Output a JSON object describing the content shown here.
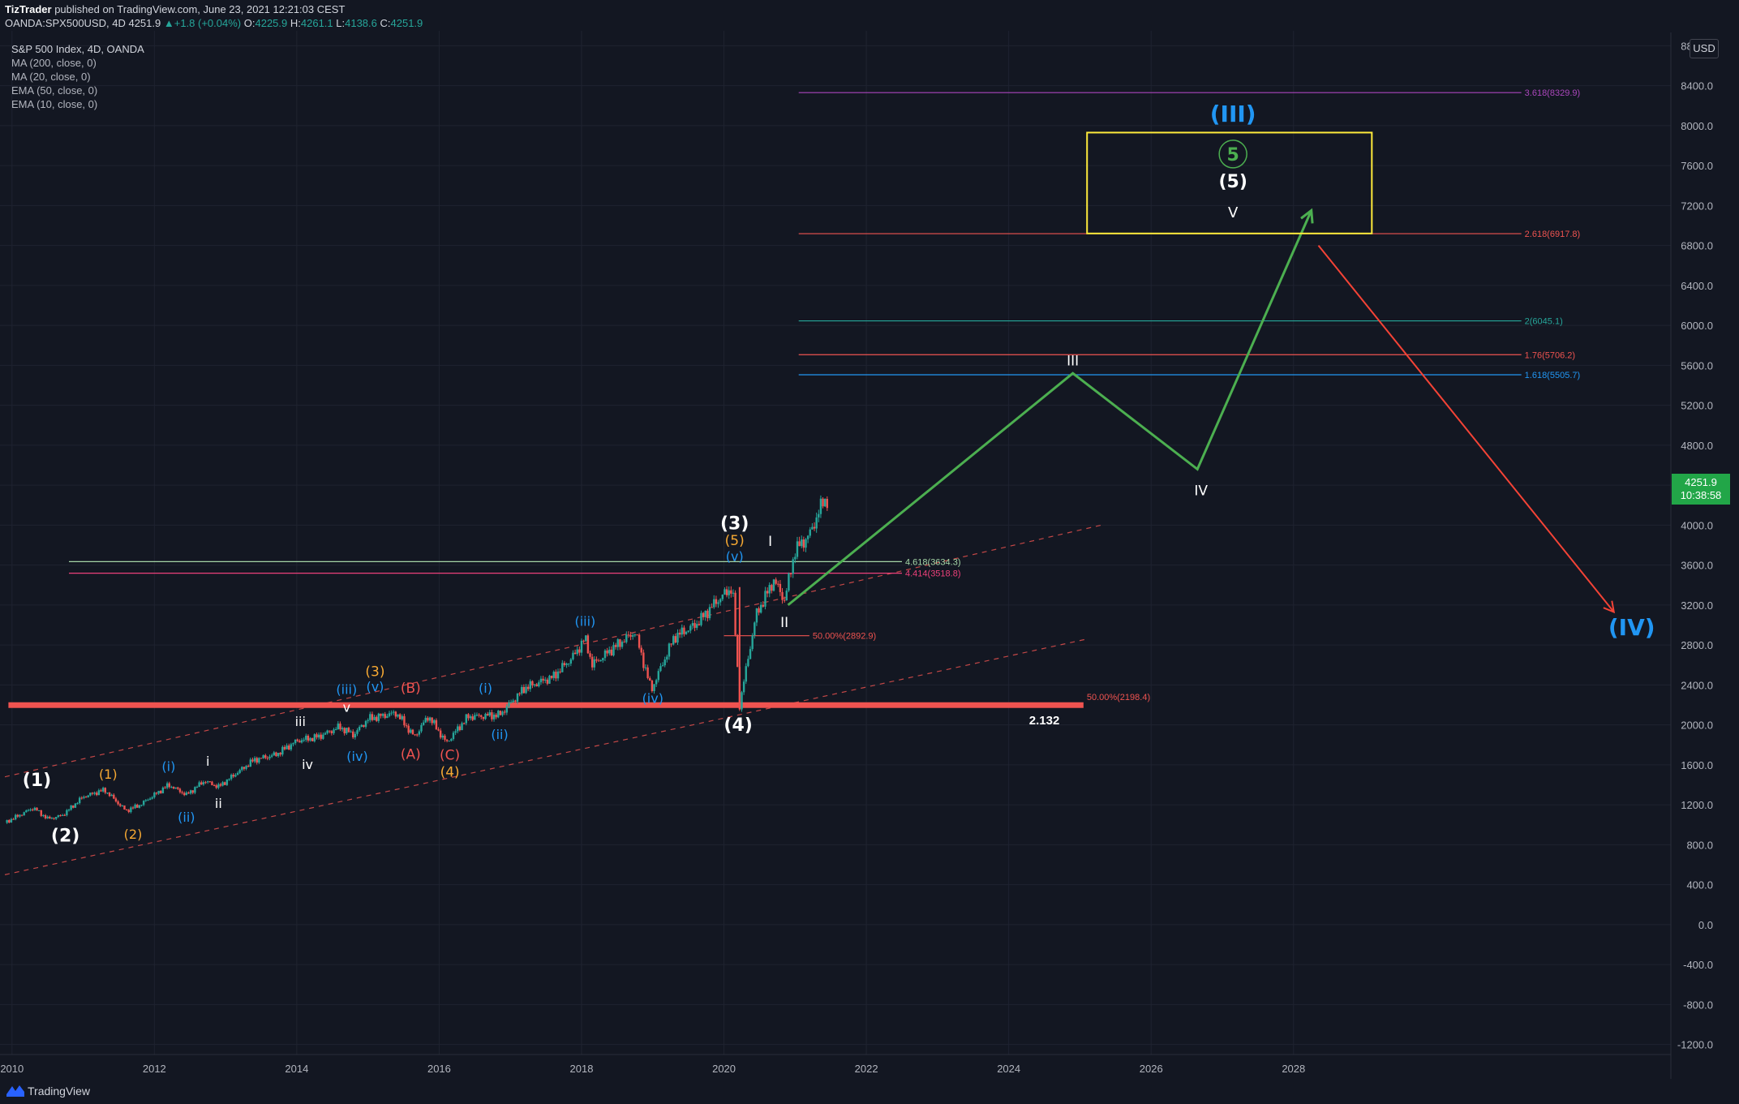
{
  "header": {
    "author": "TizTrader",
    "published": "published on TradingView.com, June 23, 2021 12:21:03 CEST",
    "symbol": "OANDA:SPX500USD, 4D",
    "last": "4251.9",
    "change_arrow": "▲",
    "change": "+1.8 (+0.04%)",
    "open_label": "O:",
    "open": "4225.9",
    "high_label": "H:",
    "high": "4261.1",
    "low_label": "L:",
    "low": "4138.6",
    "close_label": "C:",
    "close": "4251.9"
  },
  "legend": {
    "title": "S&P 500 Index, 4D, OANDA",
    "studies": [
      "MA (200, close, 0)",
      "MA (20, close, 0)",
      "EMA (50, close, 0)",
      "EMA (10, close, 0)"
    ]
  },
  "price_axis": {
    "currency": "USD",
    "current_price": "4251.9",
    "countdown": "10:38:58"
  },
  "footer": {
    "brand": "TradingView"
  },
  "colors": {
    "background": "#131722",
    "grid": "#1f2330",
    "candle_up": "#26a69a",
    "candle_down": "#ef5350",
    "projection": "#4caf50",
    "target_down": "#f44336",
    "target_box": "#ffeb3b",
    "wave_white": "#ffffff",
    "wave_orange": "#f7a933",
    "wave_blue": "#2196f3",
    "wave_red": "#ef5350",
    "wave_green": "#4caf50"
  },
  "chart_data": {
    "type": "line",
    "x_unit": "year",
    "xlim": [
      2009.9,
      2033.3
    ],
    "ylim": [
      -1300,
      8900
    ],
    "x_ticks": [
      2010,
      2012,
      2014,
      2016,
      2018,
      2020,
      2022,
      2024,
      2026,
      2028
    ],
    "y_ticks": [
      8800,
      8400,
      8000,
      7600,
      7200,
      6800,
      6400,
      6000,
      5600,
      5200,
      4800,
      4400,
      4000,
      3600,
      3200,
      2800,
      2400,
      2000,
      1600,
      1200,
      800,
      400,
      0,
      -400,
      -800,
      -1200
    ],
    "price_series": [
      [
        2009.9,
        1020
      ],
      [
        2010.3,
        1170
      ],
      [
        2010.5,
        1060
      ],
      [
        2010.7,
        1090
      ],
      [
        2011.0,
        1280
      ],
      [
        2011.3,
        1350
      ],
      [
        2011.6,
        1140
      ],
      [
        2011.8,
        1200
      ],
      [
        2012.2,
        1400
      ],
      [
        2012.45,
        1300
      ],
      [
        2012.7,
        1440
      ],
      [
        2012.9,
        1380
      ],
      [
        2013.4,
        1650
      ],
      [
        2013.7,
        1700
      ],
      [
        2014.0,
        1840
      ],
      [
        2014.3,
        1880
      ],
      [
        2014.6,
        1980
      ],
      [
        2014.8,
        1900
      ],
      [
        2015.0,
        2060
      ],
      [
        2015.4,
        2120
      ],
      [
        2015.65,
        1880
      ],
      [
        2015.85,
        2090
      ],
      [
        2016.1,
        1820
      ],
      [
        2016.4,
        2080
      ],
      [
        2016.85,
        2100
      ],
      [
        2017.2,
        2370
      ],
      [
        2017.6,
        2480
      ],
      [
        2017.9,
        2700
      ],
      [
        2018.05,
        2870
      ],
      [
        2018.15,
        2600
      ],
      [
        2018.5,
        2800
      ],
      [
        2018.75,
        2930
      ],
      [
        2018.98,
        2350
      ],
      [
        2019.3,
        2880
      ],
      [
        2019.6,
        3000
      ],
      [
        2019.9,
        3240
      ],
      [
        2020.12,
        3380
      ],
      [
        2020.22,
        2200
      ],
      [
        2020.45,
        3100
      ],
      [
        2020.7,
        3450
      ],
      [
        2020.85,
        3250
      ],
      [
        2021.0,
        3750
      ],
      [
        2021.2,
        3900
      ],
      [
        2021.4,
        4250
      ],
      [
        2021.47,
        4251.9
      ]
    ],
    "horizontal_levels": [
      {
        "label": "3.618(8329.9)",
        "value": 8329.9,
        "color": "#ab47bc"
      },
      {
        "label": "2.618(6917.8)",
        "value": 6917.8,
        "color": "#ef5350"
      },
      {
        "label": "2(6045.1)",
        "value": 6045.1,
        "color": "#26a69a"
      },
      {
        "label": "1.76(5706.2)",
        "value": 5706.2,
        "color": "#ef5350"
      },
      {
        "label": "1.618(5505.7)",
        "value": 5505.7,
        "color": "#2196f3"
      },
      {
        "label": "4.618(3634.3)",
        "value": 3634.3,
        "color": "#a5d6a7"
      },
      {
        "label": "4.414(3518.8)",
        "value": 3518.8,
        "color": "#ec407a"
      },
      {
        "label": "50.00%(2892.9)",
        "value": 2892.9,
        "color": "#ef5350"
      },
      {
        "label": "50.00%(2198.4)",
        "value": 2198.4,
        "color": "#ef5350"
      }
    ],
    "support_label": "2.132",
    "projection_path": [
      [
        2020.9,
        3200
      ],
      [
        2024.9,
        5520
      ],
      [
        2026.65,
        4560
      ],
      [
        2028.25,
        7150
      ]
    ],
    "decline_path": [
      [
        2028.35,
        6800
      ],
      [
        2032.5,
        3130
      ]
    ],
    "target_box": {
      "x0": 2025.1,
      "x1": 2029.1,
      "y0": 6920,
      "y1": 7930
    },
    "wave_labels": [
      {
        "text": "(1)",
        "x": 2010.35,
        "y": 1390,
        "color": "#ffffff",
        "size": 22
      },
      {
        "text": "(2)",
        "x": 2010.75,
        "y": 830,
        "color": "#ffffff",
        "size": 22
      },
      {
        "text": "(1)",
        "x": 2011.35,
        "y": 1460,
        "color": "#f7a933",
        "size": 16
      },
      {
        "text": "(2)",
        "x": 2011.7,
        "y": 860,
        "color": "#f7a933",
        "size": 16
      },
      {
        "text": "(i)",
        "x": 2012.2,
        "y": 1540,
        "color": "#2196f3",
        "size": 16
      },
      {
        "text": "(ii)",
        "x": 2012.45,
        "y": 1030,
        "color": "#2196f3",
        "size": 16
      },
      {
        "text": "i",
        "x": 2012.75,
        "y": 1590,
        "color": "#ffffff",
        "size": 16
      },
      {
        "text": "ii",
        "x": 2012.9,
        "y": 1170,
        "color": "#ffffff",
        "size": 16
      },
      {
        "text": "iii",
        "x": 2014.05,
        "y": 1990,
        "color": "#ffffff",
        "size": 16
      },
      {
        "text": "iv",
        "x": 2014.15,
        "y": 1560,
        "color": "#ffffff",
        "size": 16
      },
      {
        "text": "(iii)",
        "x": 2014.7,
        "y": 2310,
        "color": "#2196f3",
        "size": 16
      },
      {
        "text": "v",
        "x": 2014.7,
        "y": 2130,
        "color": "#ffffff",
        "size": 16
      },
      {
        "text": "(iv)",
        "x": 2014.85,
        "y": 1640,
        "color": "#2196f3",
        "size": 16
      },
      {
        "text": "(3)",
        "x": 2015.1,
        "y": 2490,
        "color": "#f7a933",
        "size": 17
      },
      {
        "text": "(v)",
        "x": 2015.1,
        "y": 2340,
        "color": "#2196f3",
        "size": 16
      },
      {
        "text": "(B)",
        "x": 2015.6,
        "y": 2320,
        "color": "#ef5350",
        "size": 17
      },
      {
        "text": "(A)",
        "x": 2015.6,
        "y": 1660,
        "color": "#ef5350",
        "size": 17
      },
      {
        "text": "(C)",
        "x": 2016.15,
        "y": 1650,
        "color": "#ef5350",
        "size": 17
      },
      {
        "text": "(4)",
        "x": 2016.15,
        "y": 1480,
        "color": "#f7a933",
        "size": 17
      },
      {
        "text": "(i)",
        "x": 2016.65,
        "y": 2320,
        "color": "#2196f3",
        "size": 16
      },
      {
        "text": "(ii)",
        "x": 2016.85,
        "y": 1860,
        "color": "#2196f3",
        "size": 16
      },
      {
        "text": "(iii)",
        "x": 2018.05,
        "y": 2990,
        "color": "#2196f3",
        "size": 16
      },
      {
        "text": "(iv)",
        "x": 2019.0,
        "y": 2220,
        "color": "#2196f3",
        "size": 16
      },
      {
        "text": "(3)",
        "x": 2020.15,
        "y": 3960,
        "color": "#ffffff",
        "size": 22
      },
      {
        "text": "(5)",
        "x": 2020.15,
        "y": 3800,
        "color": "#f7a933",
        "size": 17
      },
      {
        "text": "(v)",
        "x": 2020.15,
        "y": 3640,
        "color": "#2196f3",
        "size": 16
      },
      {
        "text": "(4)",
        "x": 2020.2,
        "y": 1940,
        "color": "#ffffff",
        "size": 22
      },
      {
        "text": "I",
        "x": 2020.65,
        "y": 3790,
        "color": "#ffffff",
        "size": 17
      },
      {
        "text": "II",
        "x": 2020.85,
        "y": 2980,
        "color": "#ffffff",
        "size": 17
      },
      {
        "text": "III",
        "x": 2024.9,
        "y": 5600,
        "color": "#ffffff",
        "size": 17
      },
      {
        "text": "IV",
        "x": 2026.7,
        "y": 4300,
        "color": "#ffffff",
        "size": 17
      },
      {
        "text": "(III)",
        "x": 2027.15,
        "y": 8040,
        "color": "#2196f3",
        "size": 28
      },
      {
        "text": "(5)",
        "x": 2027.15,
        "y": 7380,
        "color": "#ffffff",
        "size": 22
      },
      {
        "text": "V",
        "x": 2027.15,
        "y": 7080,
        "color": "#ffffff",
        "size": 18
      },
      {
        "text": "(IV)",
        "x": 2032.75,
        "y": 2900,
        "color": "#2196f3",
        "size": 28
      }
    ],
    "circled_label": {
      "text": "5",
      "x": 2027.15,
      "y": 7650,
      "color": "#4caf50"
    }
  }
}
